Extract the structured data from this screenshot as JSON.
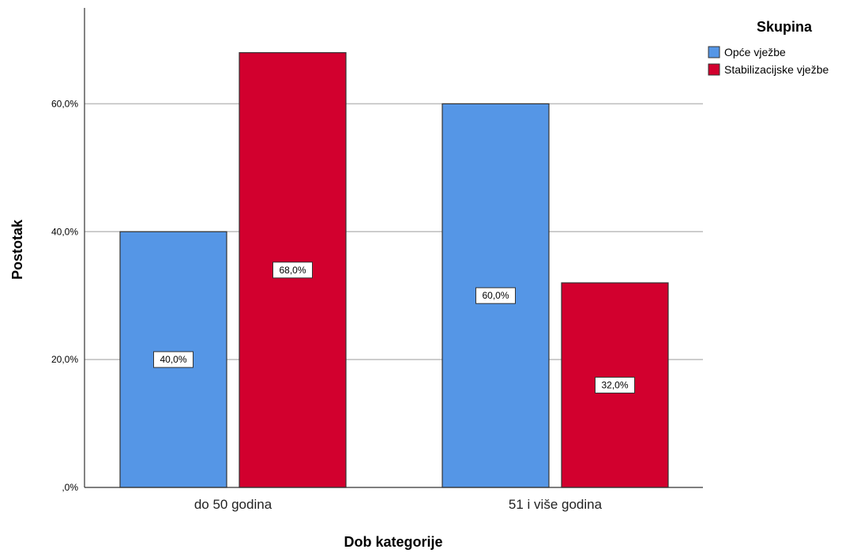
{
  "chart_data": {
    "type": "bar",
    "categories": [
      "do 50 godina",
      "51 i više godina"
    ],
    "series": [
      {
        "name": "Opće vježbe",
        "values": [
          40.0,
          60.0
        ],
        "color": "#5596e6",
        "labels": [
          "40,0%",
          "60,0%"
        ]
      },
      {
        "name": "Stabilizacijske vježbe",
        "values": [
          68.0,
          32.0
        ],
        "color": "#d2002e",
        "labels": [
          "68,0%",
          "32,0%"
        ]
      }
    ],
    "xlabel": "Dob kategorije",
    "ylabel": "Postotak",
    "ylim": [
      0,
      75
    ],
    "yticks": [
      0,
      20,
      40,
      60
    ],
    "ytick_labels": [
      ",0%",
      "20,0%",
      "40,0%",
      "60,0%"
    ],
    "legend": {
      "title": "Skupina",
      "position": "top-right"
    },
    "grid": "horizontal"
  }
}
